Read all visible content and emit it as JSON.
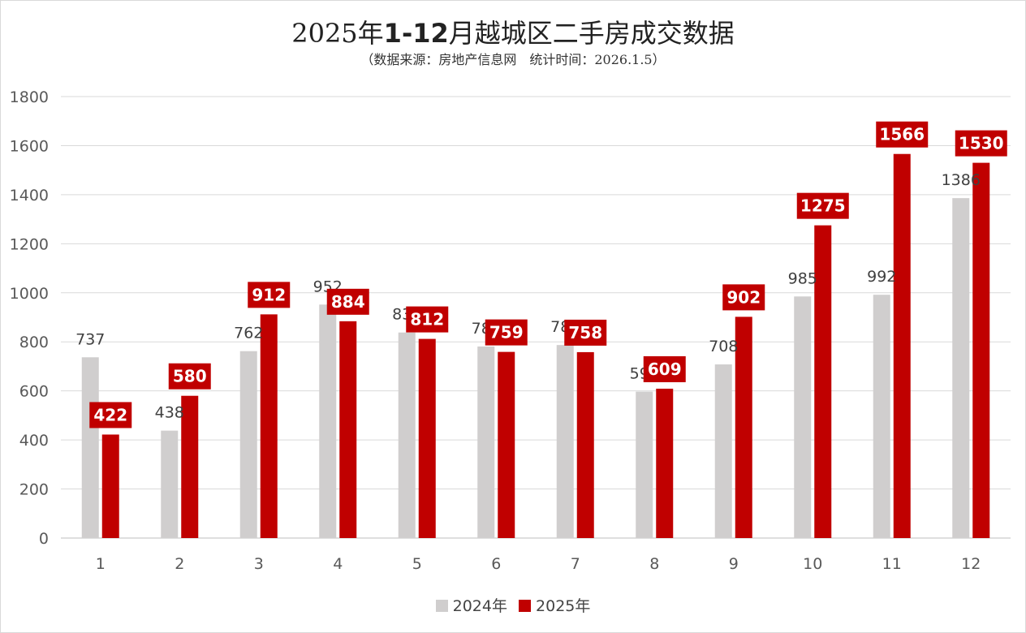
{
  "title_prefix": "2025年",
  "title_bold": "1-12",
  "title_suffix": "月越城区二手房成交数据",
  "subtitle": "（数据来源：房地产信息网　统计时间：2026.1.5）",
  "chart_data": {
    "type": "bar",
    "title": "2025年1-12月越城区二手房成交数据",
    "subtitle": "（数据来源：房地产信息网　统计时间：2026.1.5）",
    "categories": [
      "1",
      "2",
      "3",
      "4",
      "5",
      "6",
      "7",
      "8",
      "9",
      "10",
      "11",
      "12"
    ],
    "series": [
      {
        "name": "2024年",
        "color": "#d0cece",
        "values": [
          737,
          438,
          762,
          952,
          838,
          781,
          787,
          597,
          708,
          985,
          992,
          1386
        ]
      },
      {
        "name": "2025年",
        "color": "#c00000",
        "values": [
          422,
          580,
          912,
          884,
          812,
          759,
          758,
          609,
          902,
          1275,
          1566,
          1530
        ]
      }
    ],
    "ylim": [
      0,
      1800
    ],
    "yticks": [
      "0",
      "200",
      "400",
      "600",
      "800",
      "1000",
      "1200",
      "1400",
      "1600",
      "1800"
    ],
    "grid": true,
    "legend": "bottom",
    "label_colors": {
      "2024_text": "#404040",
      "2025_box": "#c00000",
      "2025_text": "#ffffff"
    }
  }
}
